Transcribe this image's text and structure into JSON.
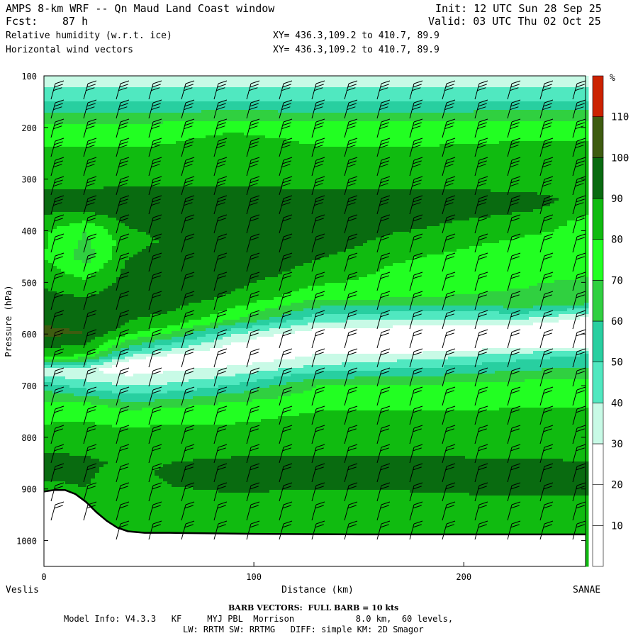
{
  "header": {
    "title": "AMPS 8-km WRF -- Qn Maud Land Coast window",
    "init": "Init: 12 UTC Sun 28 Sep 25",
    "fcst_label": "Fcst:",
    "fcst_value": "87 h",
    "valid": "Valid: 03 UTC Thu 02 Oct 25",
    "field1": "Relative humidity (w.r.t. ice)",
    "field2": "Horizontal wind vectors",
    "xy1": "XY= 436.3,109.2 to 410.7, 89.9",
    "xy2": "XY= 436.3,109.2 to 410.7, 89.9"
  },
  "footer": {
    "barb_note": "BARB VECTORS:  FULL BARB = 10 kts",
    "model_info": "Model Info: V4.3.3   KF     MYJ PBL  Morrison            8.0 km,  60 levels,",
    "physics": "LW: RRTM SW: RRTMG   DIFF: simple KM: 2D Smagor"
  },
  "colors": {
    "c0": "#ffffff",
    "c10": "#ffffff",
    "c20": "#ffffff",
    "c30": "#c8fae6",
    "c40": "#50e8c0",
    "c50": "#28cfa0",
    "c60": "#30d040",
    "c70": "#22ff22",
    "c80": "#10bb10",
    "c90": "#096b10",
    "c100": "#3e5c10",
    "c110": "#cc2200",
    "terrain": "#ffffff"
  },
  "chart_data": {
    "type": "heatmap",
    "title": "Relative humidity (w.r.t. ice)",
    "xlabel": "Distance (km)",
    "ylabel": "Pressure (hPa)",
    "xlim": [
      0,
      258
    ],
    "ylim": [
      1050,
      100
    ],
    "x_ticks": [
      0,
      100,
      200
    ],
    "y_ticks": [
      100,
      200,
      300,
      400,
      500,
      600,
      700,
      800,
      900,
      1000
    ],
    "x_end_labels": {
      "left": "Veslis",
      "right": "SANAE"
    },
    "colorbar": {
      "unit": "%",
      "levels": [
        10,
        20,
        30,
        40,
        50,
        60,
        70,
        80,
        90,
        100,
        110
      ]
    },
    "terrain_pressure": [
      [
        0,
        905
      ],
      [
        5,
        902
      ],
      [
        10,
        902
      ],
      [
        15,
        910
      ],
      [
        20,
        925
      ],
      [
        25,
        945
      ],
      [
        30,
        962
      ],
      [
        35,
        975
      ],
      [
        40,
        982
      ],
      [
        48,
        985
      ],
      [
        60,
        985
      ],
      [
        80,
        986
      ],
      [
        100,
        987
      ],
      [
        150,
        988
      ],
      [
        200,
        988
      ],
      [
        258,
        988
      ]
    ],
    "rh_profiles": [
      {
        "x": 0,
        "rh": [
          [
            100,
            35
          ],
          [
            140,
            45
          ],
          [
            200,
            72
          ],
          [
            250,
            82
          ],
          [
            300,
            80
          ],
          [
            330,
            96
          ],
          [
            360,
            92
          ],
          [
            400,
            82
          ],
          [
            450,
            80
          ],
          [
            500,
            88
          ],
          [
            550,
            96
          ],
          [
            600,
            102
          ],
          [
            640,
            85
          ],
          [
            670,
            30
          ],
          [
            700,
            55
          ],
          [
            740,
            75
          ],
          [
            800,
            84
          ],
          [
            850,
            94
          ],
          [
            900,
            88
          ]
        ]
      },
      {
        "x": 20,
        "rh": [
          [
            100,
            35
          ],
          [
            140,
            45
          ],
          [
            200,
            72
          ],
          [
            250,
            82
          ],
          [
            300,
            80
          ],
          [
            330,
            96
          ],
          [
            360,
            92
          ],
          [
            400,
            70
          ],
          [
            450,
            65
          ],
          [
            500,
            82
          ],
          [
            550,
            96
          ],
          [
            600,
            100
          ],
          [
            640,
            80
          ],
          [
            670,
            30
          ],
          [
            700,
            45
          ],
          [
            740,
            75
          ],
          [
            800,
            85
          ],
          [
            850,
            92
          ],
          [
            900,
            90
          ]
        ]
      },
      {
        "x": 40,
        "rh": [
          [
            100,
            35
          ],
          [
            140,
            45
          ],
          [
            200,
            72
          ],
          [
            250,
            82
          ],
          [
            300,
            80
          ],
          [
            330,
            100
          ],
          [
            370,
            95
          ],
          [
            420,
            85
          ],
          [
            470,
            92
          ],
          [
            530,
            96
          ],
          [
            590,
            88
          ],
          [
            630,
            55
          ],
          [
            660,
            20
          ],
          [
            700,
            40
          ],
          [
            750,
            72
          ],
          [
            800,
            85
          ],
          [
            850,
            88
          ],
          [
            900,
            84
          ]
        ]
      },
      {
        "x": 60,
        "rh": [
          [
            100,
            35
          ],
          [
            140,
            45
          ],
          [
            200,
            75
          ],
          [
            250,
            83
          ],
          [
            300,
            80
          ],
          [
            330,
            100
          ],
          [
            370,
            95
          ],
          [
            420,
            92
          ],
          [
            480,
            100
          ],
          [
            530,
            96
          ],
          [
            580,
            85
          ],
          [
            620,
            50
          ],
          [
            650,
            20
          ],
          [
            700,
            42
          ],
          [
            750,
            75
          ],
          [
            800,
            85
          ],
          [
            870,
            92
          ],
          [
            950,
            85
          ]
        ]
      },
      {
        "x": 90,
        "rh": [
          [
            100,
            35
          ],
          [
            140,
            45
          ],
          [
            200,
            78
          ],
          [
            240,
            86
          ],
          [
            300,
            80
          ],
          [
            330,
            100
          ],
          [
            370,
            96
          ],
          [
            420,
            95
          ],
          [
            480,
            96
          ],
          [
            530,
            88
          ],
          [
            570,
            72
          ],
          [
            600,
            40
          ],
          [
            640,
            18
          ],
          [
            690,
            45
          ],
          [
            740,
            75
          ],
          [
            800,
            84
          ],
          [
            870,
            95
          ],
          [
            950,
            84
          ]
        ]
      },
      {
        "x": 130,
        "rh": [
          [
            100,
            35
          ],
          [
            140,
            45
          ],
          [
            200,
            75
          ],
          [
            250,
            82
          ],
          [
            300,
            80
          ],
          [
            330,
            96
          ],
          [
            370,
            95
          ],
          [
            430,
            94
          ],
          [
            490,
            85
          ],
          [
            530,
            72
          ],
          [
            570,
            45
          ],
          [
            610,
            15
          ],
          [
            660,
            40
          ],
          [
            700,
            70
          ],
          [
            750,
            80
          ],
          [
            800,
            86
          ],
          [
            870,
            94
          ],
          [
            950,
            84
          ]
        ]
      },
      {
        "x": 180,
        "rh": [
          [
            100,
            35
          ],
          [
            140,
            45
          ],
          [
            200,
            75
          ],
          [
            250,
            82
          ],
          [
            300,
            80
          ],
          [
            330,
            96
          ],
          [
            370,
            94
          ],
          [
            420,
            86
          ],
          [
            470,
            76
          ],
          [
            530,
            70
          ],
          [
            570,
            40
          ],
          [
            610,
            12
          ],
          [
            650,
            40
          ],
          [
            700,
            72
          ],
          [
            750,
            80
          ],
          [
            800,
            84
          ],
          [
            860,
            94
          ],
          [
            950,
            86
          ]
        ]
      },
      {
        "x": 230,
        "rh": [
          [
            100,
            35
          ],
          [
            140,
            45
          ],
          [
            200,
            78
          ],
          [
            250,
            82
          ],
          [
            300,
            80
          ],
          [
            340,
            96
          ],
          [
            380,
            86
          ],
          [
            430,
            76
          ],
          [
            480,
            72
          ],
          [
            540,
            68
          ],
          [
            575,
            35
          ],
          [
            610,
            10
          ],
          [
            640,
            45
          ],
          [
            700,
            75
          ],
          [
            760,
            82
          ],
          [
            820,
            86
          ],
          [
            870,
            95
          ],
          [
            950,
            86
          ]
        ]
      },
      {
        "x": 258,
        "rh": [
          [
            100,
            35
          ],
          [
            140,
            45
          ],
          [
            200,
            78
          ],
          [
            250,
            82
          ],
          [
            300,
            80
          ],
          [
            340,
            86
          ],
          [
            380,
            78
          ],
          [
            430,
            76
          ],
          [
            480,
            72
          ],
          [
            540,
            62
          ],
          [
            570,
            28
          ],
          [
            610,
            10
          ],
          [
            640,
            50
          ],
          [
            700,
            76
          ],
          [
            760,
            82
          ],
          [
            820,
            85
          ],
          [
            870,
            95
          ],
          [
            950,
            86
          ]
        ]
      }
    ]
  }
}
